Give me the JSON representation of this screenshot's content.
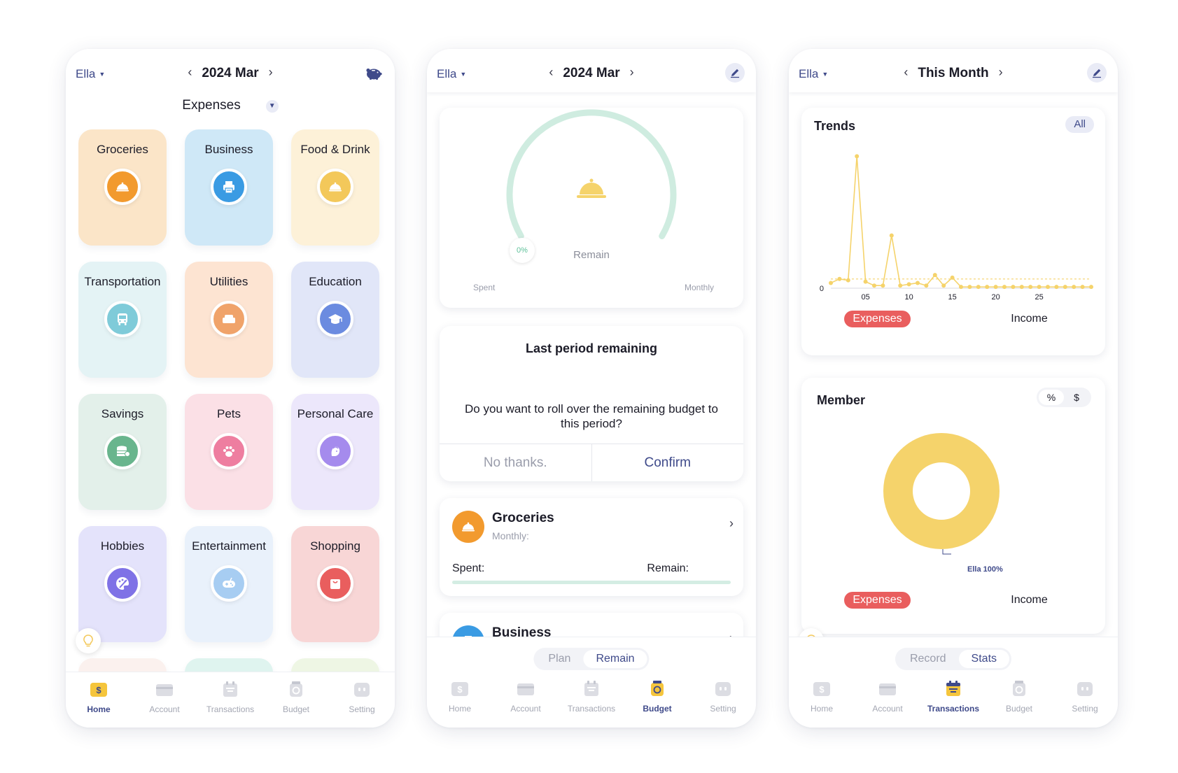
{
  "colors": {
    "brand": "#3f4a8a",
    "accent_red": "#e95e5e",
    "chart_yellow": "#f5d36b",
    "gauge_green": "#cfece0"
  },
  "phone1": {
    "header": {
      "user": "Ella",
      "period": "2024 Mar",
      "right_icon": "piggy-bank-icon"
    },
    "type_selector": "Expenses",
    "categories": [
      {
        "name": "Groceries",
        "icon": "cloche-icon",
        "card": "#fbe5c8",
        "icon_bg": "#f29a2e"
      },
      {
        "name": "Business",
        "icon": "printer-icon",
        "card": "#cfe8f7",
        "icon_bg": "#3a9be3"
      },
      {
        "name": "Food & Drink",
        "icon": "cloche-icon",
        "card": "#fdf1d8",
        "icon_bg": "#f3c85a"
      },
      {
        "name": "Transportation",
        "icon": "bus-icon",
        "card": "#e4f3f5",
        "icon_bg": "#7fcbd9"
      },
      {
        "name": "Utilities",
        "icon": "sofa-icon",
        "card": "#fde4d2",
        "icon_bg": "#f0a36a"
      },
      {
        "name": "Education",
        "icon": "graduation-cap-icon",
        "card": "#e1e6f8",
        "icon_bg": "#6b8be0"
      },
      {
        "name": "Savings",
        "icon": "coins-icon",
        "card": "#e3f0ea",
        "icon_bg": "#69b58d"
      },
      {
        "name": "Pets",
        "icon": "paw-icon",
        "card": "#fbe0e6",
        "icon_bg": "#ee7ea0"
      },
      {
        "name": "Personal Care",
        "icon": "face-icon",
        "card": "#ece7fb",
        "icon_bg": "#a58bed"
      },
      {
        "name": "Hobbies",
        "icon": "palette-icon",
        "card": "#e4e3fb",
        "icon_bg": "#7f72e6"
      },
      {
        "name": "Entertainment",
        "icon": "gamepad-icon",
        "card": "#e9f1fb",
        "icon_bg": "#a7cdf2"
      },
      {
        "name": "Shopping",
        "icon": "shopping-bag-icon",
        "card": "#f8d6d6",
        "icon_bg": "#e95e5e"
      }
    ],
    "nav": [
      {
        "label": "Home",
        "icon": "home-dollar-icon",
        "active": true
      },
      {
        "label": "Account",
        "icon": "wallet-icon",
        "active": false
      },
      {
        "label": "Transactions",
        "icon": "receipt-icon",
        "active": false
      },
      {
        "label": "Budget",
        "icon": "budget-jar-icon",
        "active": false
      },
      {
        "label": "Setting",
        "icon": "settings-face-icon",
        "active": false
      }
    ]
  },
  "phone2": {
    "header": {
      "user": "Ella",
      "period": "2024 Mar",
      "right_icon": "pencil-icon"
    },
    "gauge": {
      "percent_label": "0%",
      "percent_value": 0,
      "center_label": "Remain",
      "left_label": "Spent",
      "right_label": "Monthly"
    },
    "dialog": {
      "title": "Last period remaining",
      "message": "Do you want to roll over the remaining budget to this period?",
      "cancel": "No thanks.",
      "confirm": "Confirm"
    },
    "budgets": [
      {
        "name": "Groceries",
        "period": "Monthly:",
        "spent_label": "Spent:",
        "remain_label": "Remain:"
      },
      {
        "name": "Business"
      }
    ],
    "segment": {
      "options": [
        "Plan",
        "Remain"
      ],
      "selected": "Remain"
    },
    "nav": [
      {
        "label": "Home",
        "active": false
      },
      {
        "label": "Account",
        "active": false
      },
      {
        "label": "Transactions",
        "active": false
      },
      {
        "label": "Budget",
        "active": true
      },
      {
        "label": "Setting",
        "active": false
      }
    ]
  },
  "phone3": {
    "header": {
      "user": "Ella",
      "period": "This Month",
      "right_icon": "pencil-icon"
    },
    "trends": {
      "title": "Trends",
      "filter": "All",
      "tab_left": "Expenses",
      "tab_right": "Income"
    },
    "member": {
      "title": "Member",
      "toggle": [
        "%",
        "$"
      ],
      "toggle_selected": "%",
      "slice_label": "Ella 100%",
      "tab_left": "Expenses",
      "tab_right": "Income"
    },
    "segment": {
      "options": [
        "Record",
        "Stats"
      ],
      "selected": "Stats"
    },
    "nav": [
      {
        "label": "Home",
        "active": false
      },
      {
        "label": "Account",
        "active": false
      },
      {
        "label": "Transactions",
        "active": true
      },
      {
        "label": "Budget",
        "active": false
      },
      {
        "label": "Setting",
        "active": false
      }
    ]
  },
  "chart_data": [
    {
      "type": "line",
      "xlabel": "",
      "ylabel": "",
      "x_tick_labels": [
        "05",
        "10",
        "15",
        "20",
        "25"
      ],
      "y_tick_labels": [
        "0"
      ],
      "x": [
        1,
        2,
        3,
        4,
        5,
        6,
        7,
        8,
        9,
        10,
        11,
        12,
        13,
        14,
        15,
        16,
        17,
        18,
        19,
        20,
        21,
        22,
        23,
        24,
        25,
        26,
        27,
        28,
        29,
        30,
        31
      ],
      "series": [
        {
          "values": [
            0.04,
            0.07,
            0.06,
            1.0,
            0.05,
            0.02,
            0.02,
            0.4,
            0.02,
            0.03,
            0.04,
            0.02,
            0.1,
            0.02,
            0.08,
            0.01,
            0.01,
            0.01,
            0.01,
            0.01,
            0.01,
            0.01,
            0.01,
            0.01,
            0.01,
            0.01,
            0.01,
            0.01,
            0.01,
            0.01,
            0.01
          ]
        }
      ],
      "reference_line": 0.07,
      "ylim": [
        0,
        1.05
      ],
      "grid": false,
      "color": "#f5d36b"
    },
    {
      "type": "pie",
      "donut": true,
      "labels": [
        "Ella 100%"
      ],
      "values": [
        100
      ],
      "color": "#f5d36b"
    }
  ]
}
